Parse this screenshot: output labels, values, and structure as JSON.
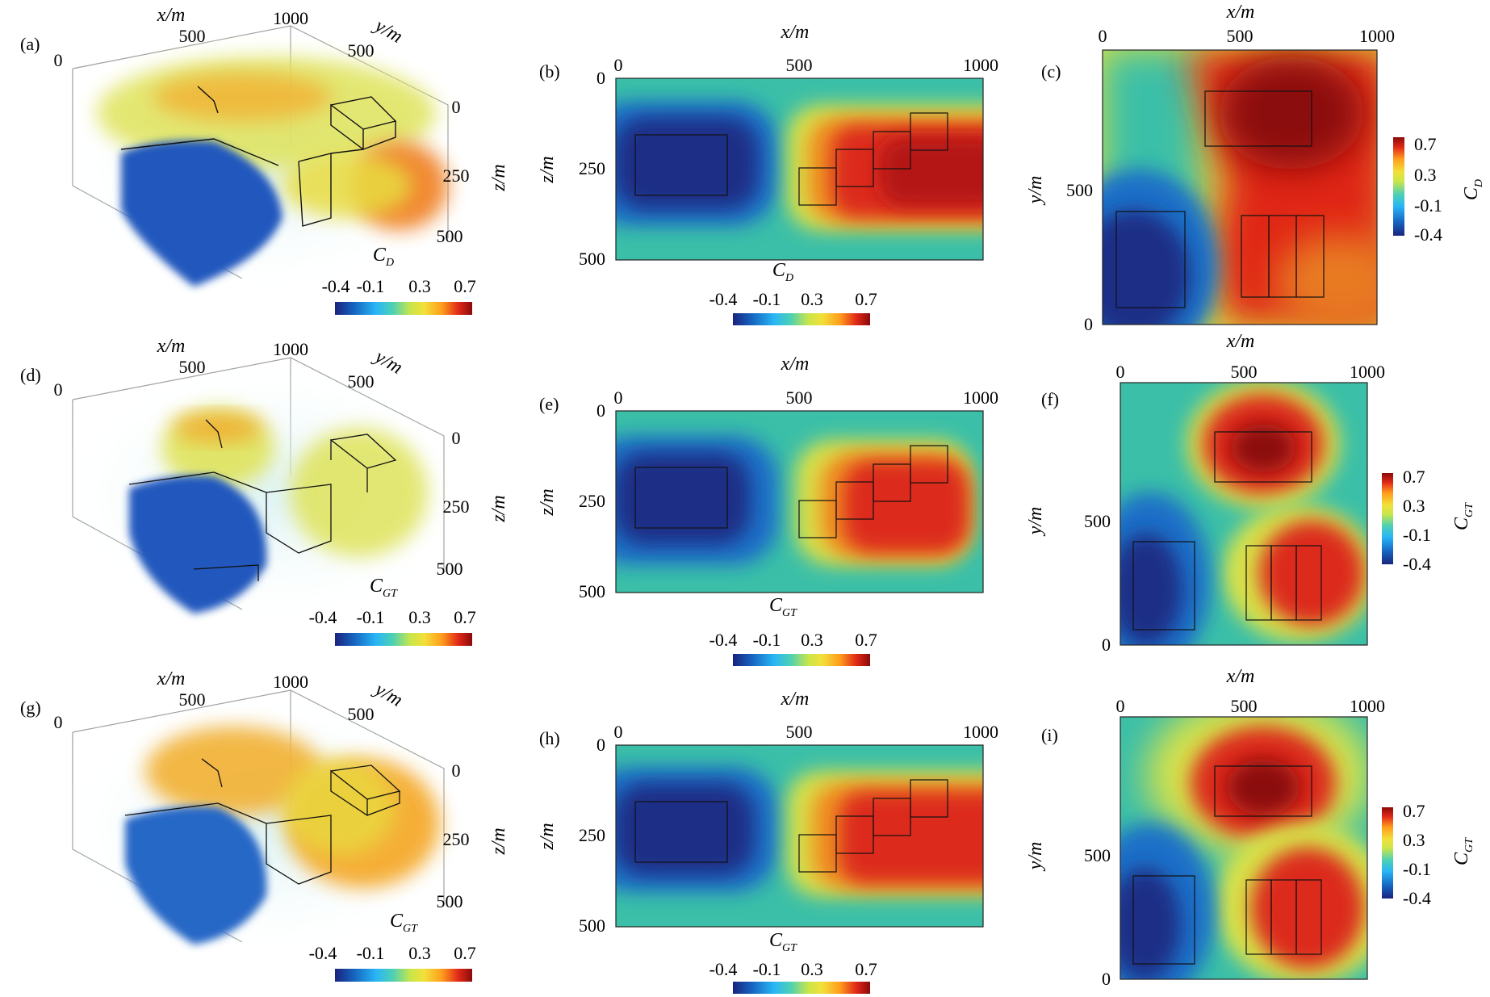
{
  "figure": {
    "colors": [
      "#1a237e",
      "#1565c0",
      "#29b6f6",
      "#4dd0b4",
      "#c8e64a",
      "#f2e03a",
      "#ff9d1c",
      "#e02818",
      "#8b0a0a"
    ],
    "rows": [
      {
        "quantity": "C",
        "sub": "D",
        "panel3d": {
          "tag": "(a)",
          "x_label": "x/m",
          "y_label": "y/m",
          "z_label": "z/m",
          "x_ticks": [
            "0",
            "500",
            "1000"
          ],
          "y_ticks": [
            "500",
            "0"
          ],
          "z_ticks": [
            "0",
            "250",
            "500"
          ],
          "cbar_ticks": [
            "-0.4",
            "-0.1",
            "0.3",
            "0.7"
          ]
        },
        "xz": {
          "tag": "(b)",
          "x_label": "x/m",
          "z_label": "z/m",
          "x_ticks": [
            "0",
            "500",
            "1000"
          ],
          "z_ticks": [
            "0",
            "250",
            "500"
          ],
          "cbar_ticks": [
            "-0.4",
            "-0.1",
            "0.3",
            "0.7"
          ]
        },
        "xy": {
          "tag": "(c)",
          "x_label": "x/m",
          "y_label": "y/m",
          "x_ticks": [
            "0",
            "500",
            "1000"
          ],
          "y_ticks": [
            "500",
            "0"
          ],
          "cbar_ticks": [
            "0.7",
            "0.3",
            "-0.1",
            "-0.4"
          ]
        }
      },
      {
        "quantity": "C",
        "sub": "GT",
        "panel3d": {
          "tag": "(d)",
          "x_label": "x/m",
          "y_label": "y/m",
          "z_label": "z/m",
          "x_ticks": [
            "0",
            "500",
            "1000"
          ],
          "y_ticks": [
            "500",
            "0"
          ],
          "z_ticks": [
            "0",
            "250",
            "500"
          ],
          "cbar_ticks": [
            "-0.4",
            "-0.1",
            "0.3",
            "0.7"
          ]
        },
        "xz": {
          "tag": "(e)",
          "x_label": "x/m",
          "z_label": "z/m",
          "x_ticks": [
            "0",
            "500",
            "1000"
          ],
          "z_ticks": [
            "0",
            "250",
            "500"
          ],
          "cbar_ticks": [
            "-0.4",
            "-0.1",
            "0.3",
            "0.7"
          ]
        },
        "xy": {
          "tag": "(f)",
          "x_label": "x/m",
          "y_label": "y/m",
          "x_ticks": [
            "0",
            "500",
            "1000"
          ],
          "y_ticks": [
            "500",
            "0"
          ],
          "cbar_ticks": [
            "0.7",
            "0.3",
            "-0.1",
            "-0.4"
          ]
        }
      },
      {
        "quantity": "C",
        "sub": "GT",
        "panel3d": {
          "tag": "(g)",
          "x_label": "x/m",
          "y_label": "y/m",
          "z_label": "z/m",
          "x_ticks": [
            "0",
            "500",
            "1000"
          ],
          "y_ticks": [
            "500",
            "0"
          ],
          "z_ticks": [
            "0",
            "250",
            "500"
          ],
          "cbar_ticks": [
            "-0.4",
            "-0.1",
            "0.3",
            "0.7"
          ]
        },
        "xz": {
          "tag": "(h)",
          "x_label": "x/m",
          "z_label": "z/m",
          "x_ticks": [
            "0",
            "500",
            "1000"
          ],
          "z_ticks": [
            "0",
            "250",
            "500"
          ],
          "cbar_ticks": [
            "-0.4",
            "-0.1",
            "0.3",
            "0.7"
          ]
        },
        "xy": {
          "tag": "(i)",
          "x_label": "x/m",
          "y_label": "y/m",
          "x_ticks": [
            "0",
            "500",
            "1000"
          ],
          "y_ticks": [
            "500",
            "0"
          ],
          "cbar_ticks": [
            "0.7",
            "0.3",
            "-0.1",
            "-0.4"
          ]
        }
      }
    ]
  }
}
